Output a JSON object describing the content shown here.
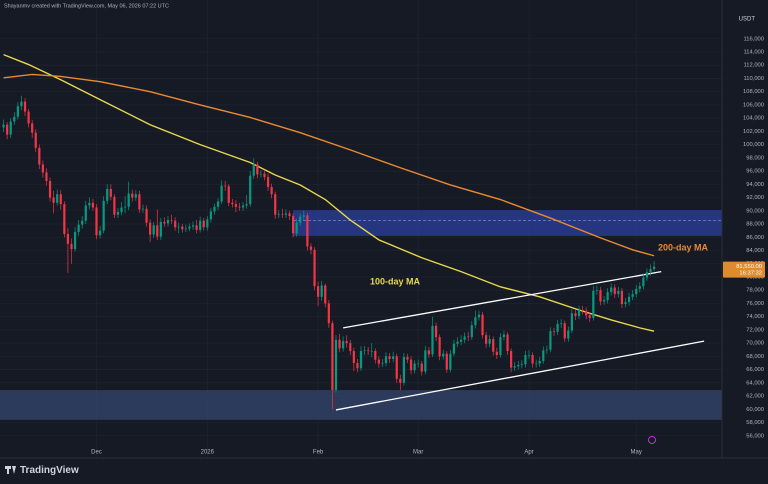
{
  "header": "Shayanmv created with TradingView.com, May 06, 2026 07:22 UTC",
  "currency": "USDT",
  "logo": "TradingView",
  "chart_data": {
    "type": "candlestick",
    "open": [
      102600,
      103000,
      101500,
      103500,
      104200,
      105800,
      106500,
      105000,
      103200,
      101800,
      99500,
      97000,
      95800,
      94500,
      92000,
      91200,
      92500,
      91000,
      86500,
      85000,
      84200,
      86800,
      87900,
      88500,
      90800,
      91200,
      90500,
      86300,
      87000,
      91500,
      93300,
      92100,
      89400,
      89800,
      90500,
      90600,
      92600,
      92000,
      92500,
      90200,
      90300,
      88200,
      86400,
      87800,
      86100,
      88300,
      88100,
      88600,
      88500,
      87500,
      87600,
      87200,
      87300,
      87600,
      87800,
      87100,
      88500,
      87500,
      88700,
      89900,
      90600,
      91400,
      93800,
      93700,
      91200,
      91000,
      90600,
      90500,
      90800,
      91000,
      95300,
      97000,
      95500,
      95600,
      95100,
      93600,
      92500,
      89400,
      89500,
      89400,
      89600,
      89200,
      86600,
      88200,
      89100,
      89300,
      84600,
      84100,
      78600,
      77000,
      78700,
      76000,
      73000,
      62900,
      70500,
      69200,
      70300,
      70000,
      68800,
      67000,
      66200,
      68800,
      68900,
      68800,
      68800,
      67500,
      66900,
      67000,
      68000,
      67600,
      68000,
      64600,
      64000,
      67900,
      67500,
      65900,
      66900,
      66900,
      65700,
      68900,
      68300,
      72600,
      70900,
      68000,
      68400,
      66000,
      68400,
      69900,
      70200,
      70500,
      71000,
      70900,
      72700,
      73900,
      74300,
      71200,
      69900,
      70600,
      68700,
      68200,
      70900,
      71300,
      68800,
      66300,
      66500,
      66700,
      66800,
      68200,
      68200,
      66900,
      66900,
      67300,
      68900,
      69000,
      71800,
      71700,
      72900,
      73000,
      70700,
      71900,
      74500,
      74100,
      75000,
      74900,
      74200,
      73800,
      77900,
      78000,
      76300,
      76500,
      77700,
      78400,
      77400,
      77900,
      75900,
      76200,
      77000,
      77400,
      78200,
      78600,
      79900,
      80700,
      81200
    ],
    "high": [
      103800,
      103400,
      104000,
      104900,
      106400,
      107400,
      107000,
      105400,
      103700,
      102300,
      100000,
      97600,
      96400,
      95000,
      93000,
      93200,
      93100,
      91400,
      87400,
      85800,
      87500,
      88600,
      89200,
      91500,
      92000,
      91800,
      91000,
      87700,
      92200,
      94000,
      94000,
      92500,
      90400,
      91300,
      92200,
      94400,
      93200,
      93100,
      93000,
      90900,
      90800,
      88700,
      88300,
      90200,
      88900,
      89000,
      89200,
      89400,
      89000,
      88200,
      88000,
      87900,
      88100,
      88400,
      88600,
      89100,
      88900,
      89200,
      90400,
      91100,
      91900,
      94600,
      94500,
      94000,
      91800,
      91600,
      91200,
      91300,
      92400,
      96000,
      97900,
      97400,
      96100,
      96000,
      95600,
      94100,
      92900,
      90100,
      90300,
      90200,
      90000,
      89600,
      88800,
      89600,
      90000,
      89700,
      85100,
      84500,
      79300,
      79400,
      79000,
      76500,
      73400,
      71200,
      71400,
      71000,
      71200,
      70500,
      69300,
      67600,
      69500,
      69600,
      69400,
      70000,
      69200,
      68000,
      67600,
      68600,
      68500,
      68700,
      68400,
      65200,
      68500,
      68400,
      68000,
      67400,
      67500,
      67300,
      69600,
      69400,
      74000,
      73100,
      71300,
      69000,
      68800,
      69000,
      70500,
      70900,
      71200,
      71600,
      71700,
      73300,
      74900,
      74900,
      74700,
      71700,
      71200,
      71000,
      69300,
      71500,
      71900,
      71700,
      69200,
      67100,
      67300,
      67400,
      68800,
      68900,
      68600,
      67500,
      67900,
      69500,
      69600,
      72400,
      72300,
      73500,
      73600,
      73400,
      72500,
      75100,
      75000,
      75600,
      75600,
      75400,
      74700,
      78600,
      78700,
      78500,
      77100,
      78300,
      79000,
      78900,
      78500,
      78300,
      76800,
      77600,
      78000,
      78800,
      79200,
      80500,
      81300,
      81900,
      82400
    ],
    "low": [
      101900,
      100800,
      101000,
      103000,
      103800,
      105200,
      104300,
      102600,
      101000,
      98900,
      96300,
      95000,
      93800,
      91400,
      89600,
      90800,
      90200,
      86000,
      80600,
      82000,
      83800,
      86200,
      87300,
      88000,
      90200,
      90000,
      85700,
      85800,
      86600,
      91000,
      91600,
      88900,
      88900,
      89300,
      89600,
      90100,
      91400,
      91500,
      89700,
      89700,
      87600,
      85300,
      85900,
      85600,
      85600,
      87600,
      87600,
      88000,
      87000,
      86600,
      86700,
      86800,
      86900,
      87100,
      86600,
      86700,
      87000,
      87000,
      88200,
      89400,
      90100,
      91000,
      93000,
      90700,
      90500,
      89800,
      90000,
      90000,
      90300,
      90600,
      94800,
      94900,
      95000,
      94600,
      93000,
      91900,
      88800,
      88900,
      88900,
      88900,
      88600,
      86000,
      86100,
      87700,
      88600,
      84000,
      83400,
      78000,
      75600,
      76400,
      75400,
      72300,
      60000,
      62500,
      68600,
      68700,
      69300,
      68200,
      65800,
      65600,
      65800,
      68200,
      68200,
      67900,
      66900,
      66300,
      66400,
      66500,
      67000,
      67100,
      64000,
      62900,
      63600,
      67000,
      65300,
      65400,
      66300,
      65100,
      65300,
      67800,
      67900,
      70300,
      67400,
      67500,
      65500,
      65600,
      68000,
      69400,
      69700,
      70000,
      70300,
      70500,
      72200,
      73400,
      70700,
      69300,
      69400,
      68100,
      67600,
      67800,
      70400,
      68200,
      65600,
      65800,
      66000,
      66200,
      66300,
      67600,
      66300,
      66300,
      66400,
      66900,
      68400,
      68600,
      71100,
      71200,
      72300,
      70200,
      70200,
      71500,
      73500,
      73600,
      74300,
      73600,
      73200,
      73400,
      77300,
      75700,
      75800,
      76000,
      77200,
      76800,
      76900,
      75300,
      75400,
      75700,
      76500,
      76900,
      77700,
      78100,
      79400,
      80200,
      80800
    ],
    "close": [
      103000,
      101500,
      103500,
      104200,
      105800,
      106500,
      105000,
      103200,
      101800,
      99500,
      97000,
      95800,
      94500,
      92000,
      91200,
      92500,
      91000,
      86500,
      85000,
      84200,
      86800,
      87900,
      88500,
      90800,
      91200,
      90500,
      86300,
      87000,
      91500,
      93300,
      92100,
      89400,
      89800,
      90500,
      90600,
      92600,
      92000,
      92500,
      90200,
      90300,
      88200,
      86400,
      87800,
      86100,
      88300,
      88100,
      88600,
      88500,
      87500,
      87600,
      87200,
      87300,
      87600,
      87800,
      87100,
      88500,
      87500,
      88700,
      89900,
      90600,
      91400,
      93800,
      93700,
      91200,
      91000,
      90600,
      90500,
      90800,
      91000,
      95300,
      97000,
      95500,
      95600,
      95100,
      93600,
      92500,
      89400,
      89500,
      89400,
      89600,
      89200,
      86600,
      88200,
      89100,
      89300,
      84600,
      84100,
      78600,
      77000,
      78700,
      76000,
      73000,
      62900,
      70500,
      69200,
      70300,
      70000,
      68800,
      67000,
      66200,
      68800,
      68900,
      68800,
      68800,
      67500,
      66900,
      67000,
      68000,
      67600,
      68000,
      64600,
      64000,
      67900,
      67500,
      65900,
      66900,
      66900,
      65700,
      68900,
      68300,
      72600,
      70900,
      68000,
      68400,
      66000,
      68400,
      69900,
      70200,
      70500,
      71000,
      70900,
      72700,
      73900,
      74300,
      71200,
      69900,
      70600,
      68700,
      68200,
      70900,
      71300,
      68800,
      66300,
      66500,
      66700,
      66800,
      68200,
      68200,
      66900,
      66900,
      67300,
      68900,
      69000,
      71800,
      71700,
      72900,
      73000,
      70700,
      71900,
      74500,
      74100,
      75000,
      74900,
      74200,
      73800,
      77900,
      78000,
      76300,
      76500,
      77700,
      78400,
      77400,
      77900,
      75900,
      76200,
      77000,
      77400,
      78200,
      78600,
      79900,
      80700,
      81200,
      81550
    ],
    "up_color": "#089981",
    "down_color": "#f23645",
    "series": [
      {
        "name": "100-day MA",
        "color": "#e8d84a",
        "x": [
          0,
          7,
          16,
          27,
          41,
          55,
          69,
          76,
          83,
          90,
          97,
          105,
          117,
          128,
          139,
          150,
          161,
          170,
          178,
          182
        ],
        "values": [
          113600,
          112100,
          109800,
          106800,
          103000,
          100000,
          97300,
          95400,
          93900,
          91700,
          88600,
          85600,
          82900,
          80800,
          78500,
          77000,
          75000,
          73500,
          72300,
          71800
        ]
      },
      {
        "name": "200-day MA",
        "color": "#ea8a2e",
        "x": [
          0,
          8,
          16,
          27,
          41,
          55,
          69,
          83,
          97,
          111,
          125,
          139,
          153,
          167,
          176,
          182
        ],
        "values": [
          110100,
          110600,
          110300,
          109500,
          108000,
          106000,
          104100,
          101800,
          99200,
          96500,
          93900,
          91700,
          88900,
          85900,
          84100,
          83200
        ]
      }
    ],
    "zones": [
      {
        "from": 81,
        "low": 86200,
        "high": 90100,
        "mid": 88500,
        "color": "#2b3f9e"
      },
      {
        "from": -1,
        "low": 58400,
        "high": 62900,
        "color": "#34466e"
      }
    ],
    "channel": [
      {
        "x": [
          95,
          184
        ],
        "values": [
          72300,
          80800
        ]
      },
      {
        "x": [
          93,
          196
        ],
        "values": [
          59900,
          70300
        ]
      }
    ],
    "last_price": {
      "value": 81550,
      "label": "81,550.00"
    },
    "countdown": "16:37:32",
    "xlim": [
      -1,
      201
    ],
    "xticks": [
      {
        "value": 26,
        "label": "Dec"
      },
      {
        "value": 57,
        "label": "2026"
      },
      {
        "value": 88,
        "label": "Feb"
      },
      {
        "value": 116,
        "label": "Mar"
      },
      {
        "value": 147,
        "label": "Apr"
      },
      {
        "value": 177,
        "label": "May"
      }
    ],
    "ylim": [
      54600,
      121400
    ],
    "yticks": [
      {
        "value": 56000,
        "label": "56,000"
      },
      {
        "value": 58000,
        "label": "58,000"
      },
      {
        "value": 60000,
        "label": "60,000"
      },
      {
        "value": 62000,
        "label": "62,000"
      },
      {
        "value": 64000,
        "label": "64,000"
      },
      {
        "value": 66000,
        "label": "66,000"
      },
      {
        "value": 68000,
        "label": "68,000"
      },
      {
        "value": 70000,
        "label": "70,000"
      },
      {
        "value": 72000,
        "label": "72,000"
      },
      {
        "value": 74000,
        "label": "74,000"
      },
      {
        "value": 76000,
        "label": "76,000"
      },
      {
        "value": 78000,
        "label": "78,000"
      },
      {
        "value": 80000,
        "label": "80,000"
      },
      {
        "value": 82000,
        "label": "82,000"
      },
      {
        "value": 84000,
        "label": "84,000"
      },
      {
        "value": 86000,
        "label": "86,000"
      },
      {
        "value": 88000,
        "label": "88,000"
      },
      {
        "value": 90000,
        "label": "90,000"
      },
      {
        "value": 92000,
        "label": "92,000"
      },
      {
        "value": 94000,
        "label": "94,000"
      },
      {
        "value": 96000,
        "label": "96,000"
      },
      {
        "value": 98000,
        "label": "98,000"
      },
      {
        "value": 100000,
        "label": "100,000"
      },
      {
        "value": 102000,
        "label": "102,000"
      },
      {
        "value": 104000,
        "label": "104,000"
      },
      {
        "value": 106000,
        "label": "106,000"
      },
      {
        "value": 108000,
        "label": "108,000"
      },
      {
        "value": 110000,
        "label": "110,000"
      },
      {
        "value": 112000,
        "label": "112,000"
      },
      {
        "value": 114000,
        "label": "114,000"
      },
      {
        "value": 116000,
        "label": "116,000"
      }
    ],
    "grid": true
  }
}
